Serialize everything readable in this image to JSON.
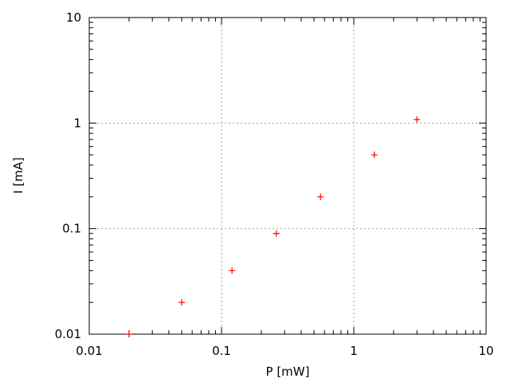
{
  "chart_data": {
    "type": "scatter",
    "title": "",
    "xlabel": "P [mW]",
    "ylabel": "I [mA]",
    "xscale": "log",
    "yscale": "log",
    "xlim": [
      0.01,
      10
    ],
    "ylim": [
      0.01,
      10
    ],
    "grid": true,
    "legend": "none",
    "marker": "plus",
    "color": "#ff0000",
    "xticks": [
      "0.01",
      "0.1",
      "1",
      "10"
    ],
    "yticks": [
      "0.01",
      "0.1",
      "1",
      "10"
    ],
    "points": [
      {
        "x": 0.02,
        "y": 0.01
      },
      {
        "x": 0.05,
        "y": 0.02
      },
      {
        "x": 0.12,
        "y": 0.04
      },
      {
        "x": 0.26,
        "y": 0.09
      },
      {
        "x": 0.56,
        "y": 0.2
      },
      {
        "x": 1.43,
        "y": 0.5
      },
      {
        "x": 3.0,
        "y": 1.08
      }
    ]
  }
}
